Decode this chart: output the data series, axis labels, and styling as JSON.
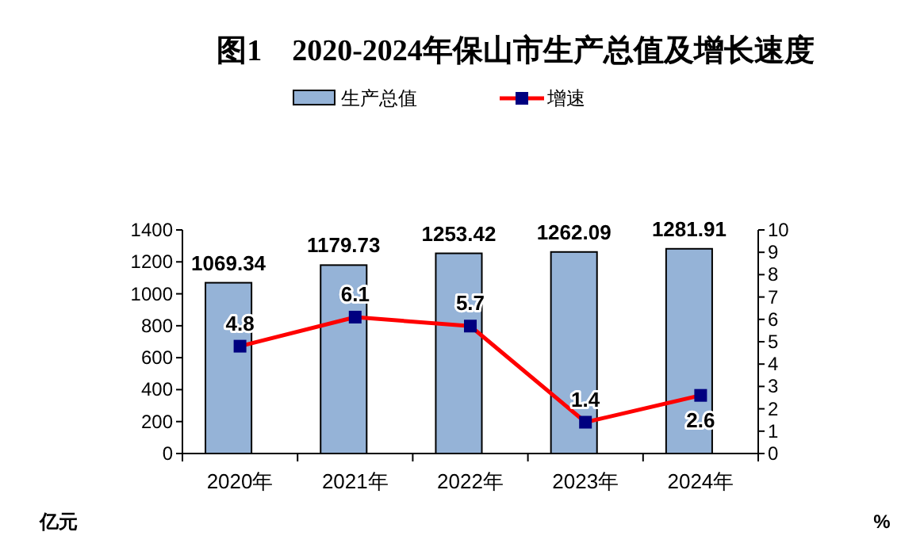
{
  "chart_data": {
    "type": "bar",
    "title": "图1　2020-2024年保山市生产总值及增长速度",
    "categories": [
      "2020年",
      "2021年",
      "2022年",
      "2023年",
      "2024年"
    ],
    "series": [
      {
        "name": "生产总值",
        "color": "#95b3d7",
        "values": [
          1069.34,
          1179.73,
          1253.42,
          1262.09,
          1281.91
        ]
      },
      {
        "name": "增速",
        "type": "line",
        "axis": "y2",
        "color": "#ff0000",
        "marker": "square",
        "values": [
          4.8,
          6.1,
          5.7,
          1.4,
          2.6
        ]
      }
    ],
    "ylabel": "亿元",
    "y2label": "%",
    "ylim": [
      0,
      1400
    ],
    "yticks": [
      0,
      200,
      400,
      600,
      800,
      1000,
      1200,
      1400
    ],
    "y2lim": [
      0,
      10
    ],
    "y2ticks": [
      0,
      1,
      2,
      3,
      4,
      5,
      6,
      7,
      8,
      9,
      10
    ],
    "data_labels": true,
    "legend": "top",
    "grid": false
  }
}
